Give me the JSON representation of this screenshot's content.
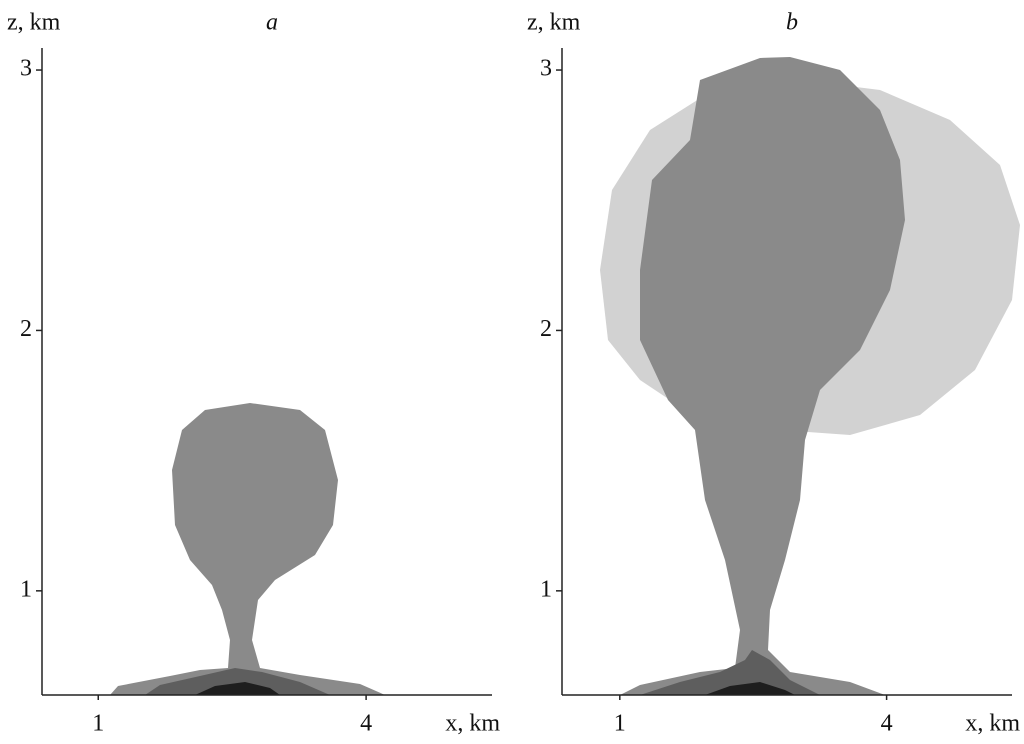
{
  "chart_data": [
    {
      "type": "plume",
      "title": "a",
      "x_label": "x, km",
      "y_label": "z, km",
      "xlim": [
        0.37,
        5.41
      ],
      "ylim": [
        0.6,
        3.1
      ],
      "xticks": [
        1,
        4
      ],
      "yticks": [
        1,
        2,
        3
      ]
    },
    {
      "type": "plume",
      "title": "b",
      "x_label": "x, km",
      "y_label": "z, km",
      "xlim": [
        0.35,
        5.41
      ],
      "ylim": [
        0.6,
        3.1
      ],
      "xticks": [
        1,
        4
      ],
      "yticks": [
        1,
        2,
        3
      ]
    }
  ]
}
